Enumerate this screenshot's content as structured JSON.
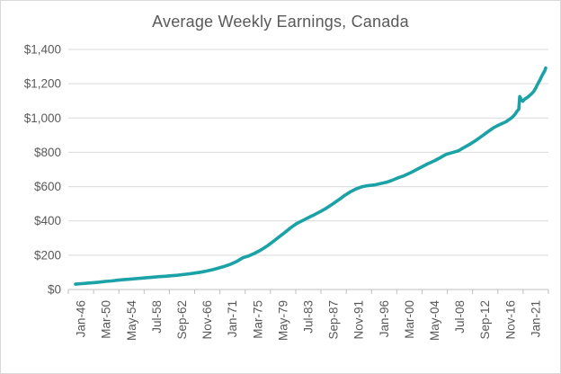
{
  "chart_data": {
    "type": "line",
    "title": "Average Weekly Earnings, Canada",
    "x_start_year": 1946,
    "x_end": "mid-2024",
    "x_tick_labels": [
      "Jan-46",
      "Mar-50",
      "May-54",
      "Jul-58",
      "Sep-62",
      "Nov-66",
      "Jan-71",
      "Mar-75",
      "May-79",
      "Jul-83",
      "Sep-87",
      "Nov-91",
      "Jan-96",
      "Mar-00",
      "May-04",
      "Jul-08",
      "Sep-12",
      "Nov-16",
      "Jan-21"
    ],
    "x_months_per_tick_interval": 50,
    "x_label_rotation": -90,
    "y_ticks": [
      {
        "label": "$0",
        "value": 0
      },
      {
        "label": "$200",
        "value": 200
      },
      {
        "label": "$400",
        "value": 400
      },
      {
        "label": "$600",
        "value": 600
      },
      {
        "label": "$800",
        "value": 800
      },
      {
        "label": "$1,000",
        "value": 1000
      },
      {
        "label": "$1,200",
        "value": 1200
      },
      {
        "label": "$1,400",
        "value": 1400
      }
    ],
    "ylim": [
      0,
      1400
    ],
    "grid": "horizontal",
    "legend": "none",
    "series": [
      {
        "name": "Average weekly earnings (CAD $)",
        "color": "#1aa2a6",
        "points": [
          [
            1946,
            31
          ],
          [
            1947,
            34
          ],
          [
            1948,
            37
          ],
          [
            1949,
            40
          ],
          [
            1950,
            43
          ],
          [
            1951,
            47
          ],
          [
            1952,
            50
          ],
          [
            1953,
            54
          ],
          [
            1954,
            57
          ],
          [
            1955,
            60
          ],
          [
            1956,
            63
          ],
          [
            1957,
            66
          ],
          [
            1958,
            69
          ],
          [
            1959,
            72
          ],
          [
            1960,
            75
          ],
          [
            1961,
            77
          ],
          [
            1962,
            80
          ],
          [
            1963,
            83
          ],
          [
            1964,
            87
          ],
          [
            1965,
            91
          ],
          [
            1966,
            96
          ],
          [
            1967,
            101
          ],
          [
            1968,
            108
          ],
          [
            1969,
            116
          ],
          [
            1970,
            126
          ],
          [
            1971,
            136
          ],
          [
            1972,
            148
          ],
          [
            1973,
            164
          ],
          [
            1974,
            185
          ],
          [
            1975,
            196
          ],
          [
            1976,
            212
          ],
          [
            1977,
            230
          ],
          [
            1978,
            252
          ],
          [
            1979,
            278
          ],
          [
            1980,
            305
          ],
          [
            1981,
            332
          ],
          [
            1982,
            360
          ],
          [
            1983,
            385
          ],
          [
            1984,
            402
          ],
          [
            1985,
            420
          ],
          [
            1986,
            437
          ],
          [
            1987,
            455
          ],
          [
            1988,
            475
          ],
          [
            1989,
            498
          ],
          [
            1990,
            522
          ],
          [
            1991,
            548
          ],
          [
            1992,
            570
          ],
          [
            1993,
            588
          ],
          [
            1994,
            600
          ],
          [
            1995,
            606
          ],
          [
            1996,
            610
          ],
          [
            1997,
            617
          ],
          [
            1998,
            625
          ],
          [
            1999,
            637
          ],
          [
            2000,
            652
          ],
          [
            2001,
            664
          ],
          [
            2002,
            680
          ],
          [
            2003,
            698
          ],
          [
            2004,
            716
          ],
          [
            2005,
            734
          ],
          [
            2006,
            750
          ],
          [
            2007,
            768
          ],
          [
            2008,
            788
          ],
          [
            2009,
            798
          ],
          [
            2010,
            808
          ],
          [
            2011,
            828
          ],
          [
            2012,
            848
          ],
          [
            2013,
            870
          ],
          [
            2014,
            895
          ],
          [
            2015,
            920
          ],
          [
            2016,
            945
          ],
          [
            2017,
            962
          ],
          [
            2018,
            978
          ],
          [
            2019,
            1002
          ],
          [
            2019.5,
            1020
          ],
          [
            2019.92,
            1042
          ],
          [
            2020.17,
            1052
          ],
          [
            2020.25,
            1090
          ],
          [
            2020.33,
            1125
          ],
          [
            2020.58,
            1108
          ],
          [
            2020.83,
            1098
          ],
          [
            2021,
            1105
          ],
          [
            2021.33,
            1115
          ],
          [
            2021.67,
            1122
          ],
          [
            2022,
            1132
          ],
          [
            2022.33,
            1142
          ],
          [
            2022.67,
            1155
          ],
          [
            2023,
            1175
          ],
          [
            2023.33,
            1198
          ],
          [
            2023.67,
            1220
          ],
          [
            2024,
            1243
          ],
          [
            2024.25,
            1260
          ],
          [
            2024.5,
            1275
          ],
          [
            2024.67,
            1292
          ]
        ]
      }
    ],
    "styles": {
      "gridline": "#d9d9d9",
      "axis": "#bfbfbf",
      "text": "#595959",
      "background": "#ffffff",
      "border": "#d9d9d9"
    }
  }
}
